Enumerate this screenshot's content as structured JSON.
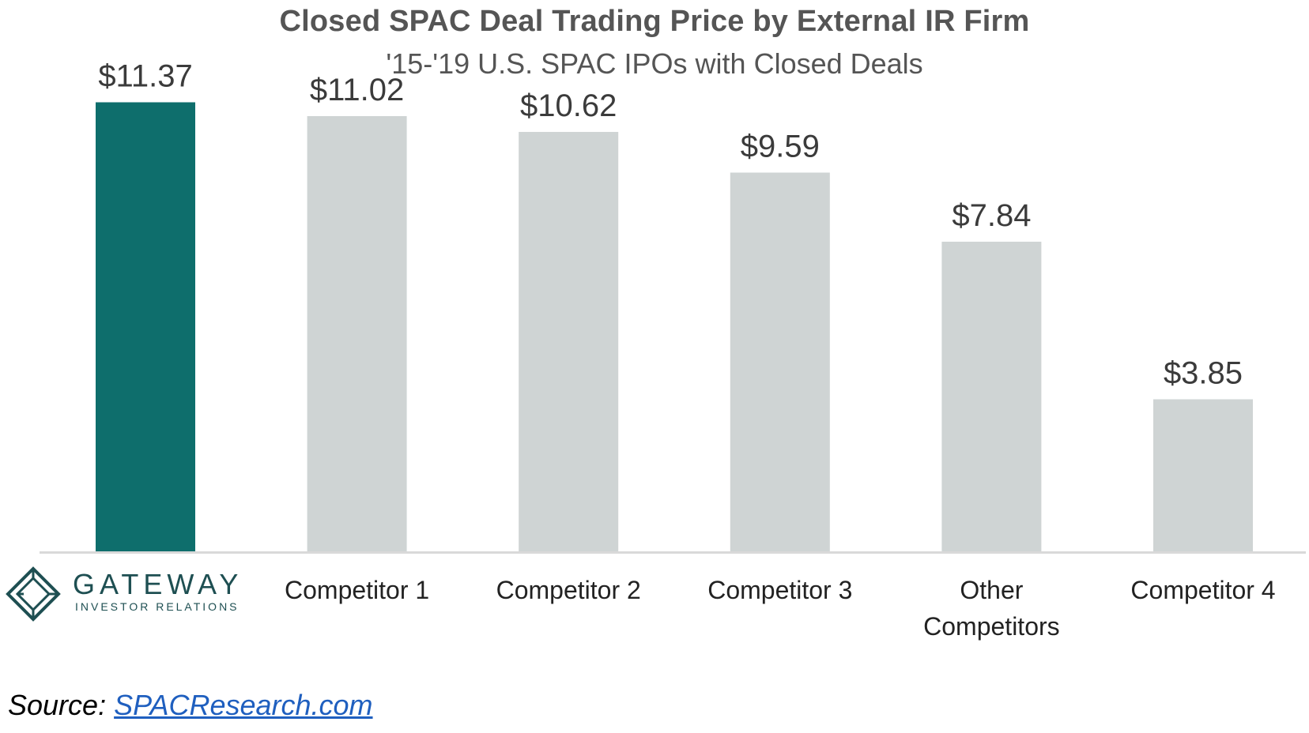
{
  "chart_data": {
    "type": "bar",
    "title": "Closed SPAC Deal Trading Price by External IR Firm",
    "subtitle": "'15-'19 U.S. SPAC IPOs with Closed Deals",
    "categories": [
      "GATEWAY",
      "Competitor 1",
      "Competitor 2",
      "Competitor 3",
      "Other Competitors",
      "Competitor 4"
    ],
    "category_lines": [
      [],
      [
        "Competitor 1"
      ],
      [
        "Competitor 2"
      ],
      [
        "Competitor 3"
      ],
      [
        "Other",
        "Competitors"
      ],
      [
        "Competitor 4"
      ]
    ],
    "values": [
      11.37,
      11.02,
      10.62,
      9.59,
      7.84,
      3.85
    ],
    "value_labels": [
      "$11.37",
      "$11.02",
      "$10.62",
      "$9.59",
      "$7.84",
      "$3.85"
    ],
    "highlight_index": 0,
    "ylim": [
      0,
      12
    ],
    "xlabel": "",
    "ylabel": "",
    "grid": false,
    "legend": "none",
    "colors": {
      "highlight": "#0e6e6c",
      "default": "#cfd4d4",
      "axis": "#d9d9d9",
      "text": "#3b3b3b"
    }
  },
  "logo": {
    "name": "GATEWAY",
    "tagline": "INVESTOR RELATIONS",
    "icon": "diamond-logo-icon"
  },
  "source": {
    "label": "Source:",
    "link_text": "SPACResearch.com"
  }
}
